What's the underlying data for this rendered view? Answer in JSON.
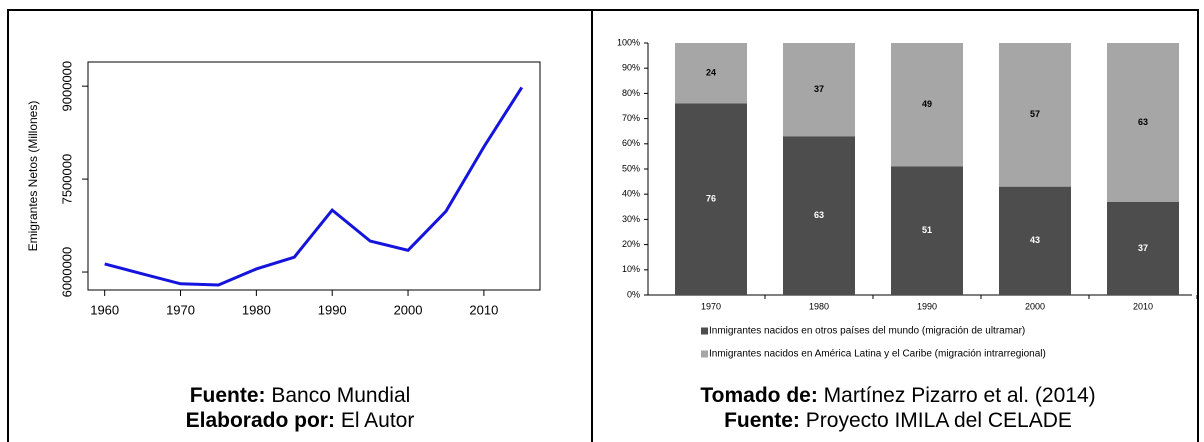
{
  "chart_data": [
    {
      "type": "line",
      "y_label": "Emigrantes Netos (Millones)",
      "x": [
        1960,
        1965,
        1970,
        1975,
        1980,
        1985,
        1990,
        1995,
        2000,
        2005,
        2010,
        2015
      ],
      "series": [
        {
          "color": "#1414dc",
          "values": [
            6130000,
            5970000,
            5810000,
            5790000,
            6050000,
            6240000,
            7000000,
            6500000,
            6350000,
            6980000,
            8020000,
            8980000
          ]
        }
      ],
      "xlim": [
        1957.8,
        2017.4
      ],
      "xticks": [
        1960,
        1970,
        1980,
        1990,
        2000,
        2010
      ],
      "ylim": [
        5710000,
        9390000
      ],
      "yticks": [
        6000000,
        7500000,
        9000000
      ]
    },
    {
      "type": "bar",
      "stacked": true,
      "categories": [
        "1970",
        "1980",
        "1990",
        "2000",
        "2010"
      ],
      "series": [
        {
          "name": "Inmigrantes nacidos en otros países del mundo (migración de ultramar)",
          "color": "#4d4d4d",
          "values": [
            76,
            63,
            51,
            43,
            37
          ]
        },
        {
          "name": "Inmigrantes nacidos en América Latina y el Caribe (migración intrarregional)",
          "color": "#a6a6a6",
          "values": [
            24,
            37,
            49,
            57,
            63
          ]
        }
      ],
      "ylim": [
        0,
        100
      ],
      "yticks": [
        {
          "value": 0,
          "label": "0%"
        },
        {
          "value": 10,
          "label": "10%"
        },
        {
          "value": 20,
          "label": "20%"
        },
        {
          "value": 30,
          "label": "30%"
        },
        {
          "value": 40,
          "label": "40%"
        },
        {
          "value": 50,
          "label": "50%"
        },
        {
          "value": 60,
          "label": "60%"
        },
        {
          "value": 70,
          "label": "70%"
        },
        {
          "value": 80,
          "label": "80%"
        },
        {
          "value": 90,
          "label": "90%"
        },
        {
          "value": 100,
          "label": "100%"
        }
      ],
      "legend": "bottom"
    }
  ],
  "captions": [
    [
      {
        "label": "Fuente:",
        "text": "Banco Mundial"
      },
      {
        "label": "Elaborado por:",
        "text": "El Autor"
      }
    ],
    [
      {
        "label": "Tomado de:",
        "text": "Martínez Pizarro et al. (2014)"
      },
      {
        "label": "Fuente:",
        "text": "Proyecto IMILA del CELADE"
      }
    ]
  ]
}
